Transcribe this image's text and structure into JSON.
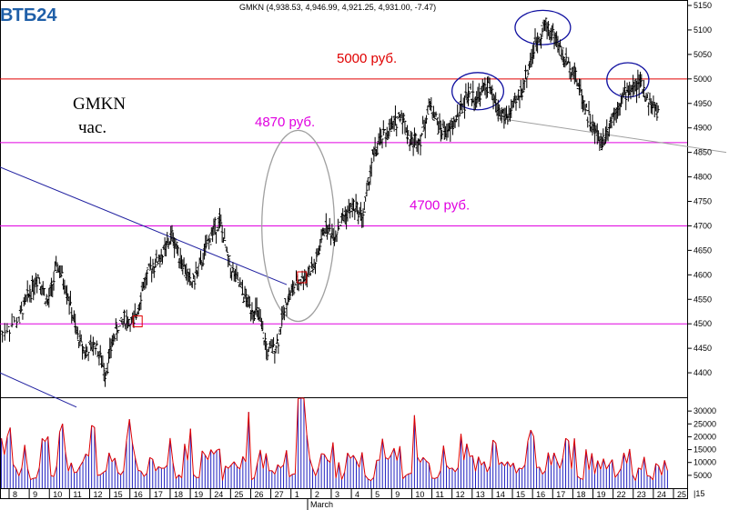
{
  "chart_data": {
    "type": "candlestick",
    "logo": "ВТБ24",
    "header": "GMKN (4,938.53, 4,946.99, 4,921.25, 4,931.00, -7.47)",
    "title_lines": [
      "GMKN",
      "час."
    ],
    "price_axis": {
      "min": 4350,
      "max": 5150,
      "ticks": [
        5150,
        5100,
        5050,
        5000,
        4950,
        4900,
        4850,
        4800,
        4750,
        4700,
        4650,
        4600,
        4550,
        4500,
        4450,
        4400
      ]
    },
    "volume_axis": {
      "min": 0,
      "max": 35000,
      "ticks": [
        30000,
        25000,
        20000,
        15000,
        10000,
        5000
      ]
    },
    "x_labels": [
      "8",
      "9",
      "10",
      "11",
      "12",
      "15",
      "16",
      "17",
      "18",
      "19",
      "24",
      "25",
      "26",
      "27",
      "1",
      "2",
      "3",
      "4",
      "5",
      "9",
      "10",
      "11",
      "12",
      "13",
      "14",
      "15",
      "16",
      "17",
      "18",
      "19",
      "22",
      "23",
      "24",
      "25"
    ],
    "x_month_label": "March",
    "x_end_label": "|15",
    "levels": [
      {
        "value": 5000,
        "label": "5000 руб.",
        "color": "#e00000"
      },
      {
        "value": 4870,
        "label": "4870 руб.",
        "color": "#e000e0"
      },
      {
        "value": 4700,
        "label": "4700 руб.",
        "color": "#e000e0"
      },
      {
        "value": 4500,
        "label": "",
        "color": "#e000e0"
      }
    ],
    "trend_lines": [
      {
        "from": [
          0,
          4820
        ],
        "to": [
          30,
          4580
        ],
        "color": "#2020a0"
      },
      {
        "from": [
          0,
          4400
        ],
        "to": [
          8,
          4330
        ],
        "color": "#2020a0"
      },
      {
        "from": [
          52,
          4920
        ],
        "to": [
          76,
          4850
        ],
        "color": "#a0a0a0"
      }
    ],
    "price_path": [
      [
        0,
        4480
      ],
      [
        2,
        4510
      ],
      [
        3,
        4560
      ],
      [
        4,
        4600
      ],
      [
        5,
        4540
      ],
      [
        6,
        4620
      ],
      [
        7,
        4570
      ],
      [
        8,
        4480
      ],
      [
        9,
        4440
      ],
      [
        10,
        4460
      ],
      [
        11,
        4400
      ],
      [
        12,
        4480
      ],
      [
        13,
        4510
      ],
      [
        14,
        4500
      ],
      [
        15,
        4580
      ],
      [
        16,
        4620
      ],
      [
        17,
        4640
      ],
      [
        18,
        4680
      ],
      [
        19,
        4630
      ],
      [
        20,
        4580
      ],
      [
        21,
        4620
      ],
      [
        22,
        4680
      ],
      [
        23,
        4710
      ],
      [
        24,
        4620
      ],
      [
        25,
        4580
      ],
      [
        26,
        4540
      ],
      [
        27,
        4520
      ],
      [
        28,
        4440
      ],
      [
        29,
        4460
      ],
      [
        30,
        4550
      ],
      [
        31,
        4580
      ],
      [
        32,
        4600
      ],
      [
        33,
        4620
      ],
      [
        34,
        4700
      ],
      [
        35,
        4680
      ],
      [
        36,
        4720
      ],
      [
        37,
        4740
      ],
      [
        38,
        4720
      ],
      [
        39,
        4840
      ],
      [
        40,
        4880
      ],
      [
        41,
        4900
      ],
      [
        42,
        4930
      ],
      [
        43,
        4870
      ],
      [
        44,
        4880
      ],
      [
        45,
        4950
      ],
      [
        46,
        4900
      ],
      [
        47,
        4890
      ],
      [
        48,
        4930
      ],
      [
        49,
        4970
      ],
      [
        50,
        4960
      ],
      [
        51,
        4990
      ],
      [
        52,
        4940
      ],
      [
        53,
        4920
      ],
      [
        54,
        4950
      ],
      [
        55,
        5000
      ],
      [
        56,
        5070
      ],
      [
        57,
        5110
      ],
      [
        58,
        5090
      ],
      [
        59,
        5040
      ],
      [
        60,
        5020
      ],
      [
        61,
        4960
      ],
      [
        62,
        4900
      ],
      [
        63,
        4870
      ],
      [
        64,
        4920
      ],
      [
        65,
        4960
      ],
      [
        66,
        4980
      ],
      [
        67,
        4990
      ],
      [
        68,
        4950
      ],
      [
        69,
        4930
      ]
    ],
    "x_range": [
      0,
      70
    ],
    "volume": [
      22000,
      9000,
      14000,
      7000,
      18000,
      11000,
      26000,
      8000,
      12000,
      19000,
      9000,
      15000,
      7000,
      22000,
      10000,
      13000,
      8000,
      17000,
      6000,
      21000,
      9000,
      12000,
      14000,
      7000,
      11000,
      23000,
      8000,
      16000,
      10000,
      13000,
      7000,
      31000,
      9000,
      12000,
      19000,
      8000,
      14000,
      11000,
      7000,
      20000,
      10000,
      15000,
      8000,
      24000,
      12000,
      9000,
      13000,
      7000,
      17000,
      11000,
      9000,
      15000,
      8000,
      12000,
      10000,
      18000,
      9000,
      14000,
      11000,
      16000,
      8000,
      13000,
      10000,
      12000,
      9000,
      14000,
      7000,
      11000,
      8000,
      10000
    ],
    "ovals": [
      {
        "cx": 31.2,
        "cy": 4700,
        "rx": 3.8,
        "ry_price": 195,
        "color": "#a0a0a0"
      },
      {
        "cx": 50.0,
        "cy": 4975,
        "rx": 2.7,
        "ry_price": 38,
        "color": "#1010a0"
      },
      {
        "cx": 56.8,
        "cy": 5105,
        "rx": 2.9,
        "ry_price": 35,
        "color": "#1010a0"
      },
      {
        "cx": 65.7,
        "cy": 4998,
        "rx": 2.2,
        "ry_price": 35,
        "color": "#1010a0"
      }
    ],
    "markers": [
      {
        "x": 14.4,
        "y": 4505,
        "color": "#e00000"
      },
      {
        "x": 31.6,
        "y": 4595,
        "color": "#e00000"
      }
    ]
  }
}
